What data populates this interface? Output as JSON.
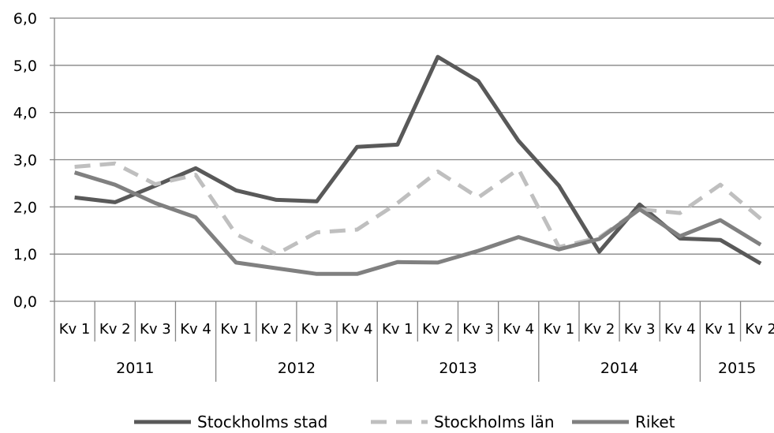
{
  "chart_data": {
    "type": "line",
    "title": "",
    "xlabel": "",
    "ylabel": "",
    "ylim": [
      0,
      6
    ],
    "y_ticks": [
      "0,0",
      "1,0",
      "2,0",
      "3,0",
      "4,0",
      "5,0",
      "6,0"
    ],
    "grid": true,
    "legend_position": "bottom",
    "categories": [
      "Kv 1",
      "Kv 2",
      "Kv 3",
      "Kv 4",
      "Kv 1",
      "Kv 2",
      "Kv 3",
      "Kv 4",
      "Kv 1",
      "Kv 2",
      "Kv 3",
      "Kv 4",
      "Kv 1",
      "Kv 2",
      "Kv 3",
      "Kv 4",
      "Kv 1",
      "Kv 2"
    ],
    "year_groups": [
      {
        "label": "2011",
        "count": 4
      },
      {
        "label": "2012",
        "count": 4
      },
      {
        "label": "2013",
        "count": 4
      },
      {
        "label": "2014",
        "count": 4
      },
      {
        "label": "2015",
        "count": 2
      }
    ],
    "series": [
      {
        "name": "Stockholms stad",
        "color": "#595959",
        "dash": "solid",
        "values": [
          2.2,
          2.1,
          2.45,
          2.82,
          2.35,
          2.15,
          2.12,
          3.27,
          3.32,
          5.18,
          4.67,
          3.4,
          2.45,
          1.05,
          2.05,
          1.33,
          1.3,
          0.8
        ]
      },
      {
        "name": "Stockholms län",
        "color": "#bfbfbf",
        "dash": "dashed",
        "values": [
          2.85,
          2.92,
          2.48,
          2.68,
          1.42,
          1.0,
          1.46,
          1.52,
          2.08,
          2.75,
          2.2,
          2.8,
          1.15,
          1.35,
          1.95,
          1.87,
          2.47,
          1.75
        ]
      },
      {
        "name": "Riket",
        "color": "#808080",
        "dash": "solid",
        "values": [
          2.73,
          2.47,
          2.08,
          1.78,
          0.82,
          0.7,
          0.58,
          0.58,
          0.83,
          0.82,
          1.07,
          1.36,
          1.1,
          1.32,
          1.95,
          1.38,
          1.72,
          1.2
        ]
      }
    ]
  }
}
